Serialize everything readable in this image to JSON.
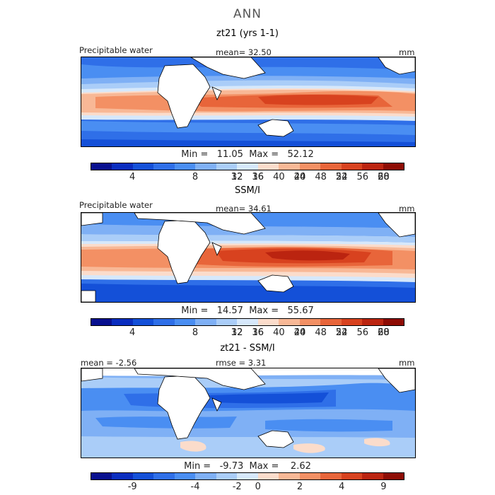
{
  "title": "ANN",
  "panels": [
    {
      "title": "zt21 (yrs 1-1)",
      "left_label": "Precipitable water",
      "center_label": "mean=   32.50",
      "right_label": "mm",
      "minmax": "Min =   11.05  Max =   52.12",
      "colorbar_ticks": [
        "4",
        "8",
        "12",
        "16",
        "20",
        "24",
        "28",
        "32",
        "36",
        "40",
        "44",
        "48",
        "52",
        "56",
        "60"
      ]
    },
    {
      "title": "SSM/I",
      "left_label": "Precipitable water",
      "center_label": "mean=   34.61",
      "right_label": "mm",
      "minmax": "Min =   14.57  Max =   55.67",
      "colorbar_ticks": [
        "4",
        "8",
        "12",
        "16",
        "20",
        "24",
        "28",
        "32",
        "36",
        "40",
        "44",
        "48",
        "52",
        "56",
        "60"
      ]
    },
    {
      "title": "zt21 - SSM/I",
      "left_label": "mean =   -2.56",
      "center_label": "rmse =    3.31",
      "right_label": "mm",
      "minmax": "Min =   -9.73  Max =    2.62",
      "colorbar_ticks": [
        "-9",
        "-4",
        "-2",
        "0",
        "2",
        "4",
        "9"
      ]
    }
  ],
  "colors": {
    "abs_scale": [
      "#08108f",
      "#0a2dbf",
      "#1450d8",
      "#2f6fe8",
      "#4a8ef2",
      "#7fb0f5",
      "#aacdf8",
      "#d6e8fb",
      "#fbdccb",
      "#f8b896",
      "#f39064",
      "#e8653a",
      "#d8421f",
      "#bb2410",
      "#8e0c04"
    ],
    "diff_scale": [
      "#08108f",
      "#0a2dbf",
      "#1450d8",
      "#2f6fe8",
      "#4a8ef2",
      "#7fb0f5",
      "#aacdf8",
      "#d6e8fb",
      "#fbdccb",
      "#f8b896",
      "#f39064",
      "#e8653a",
      "#d8421f",
      "#bb2410",
      "#8e0c04"
    ]
  }
}
